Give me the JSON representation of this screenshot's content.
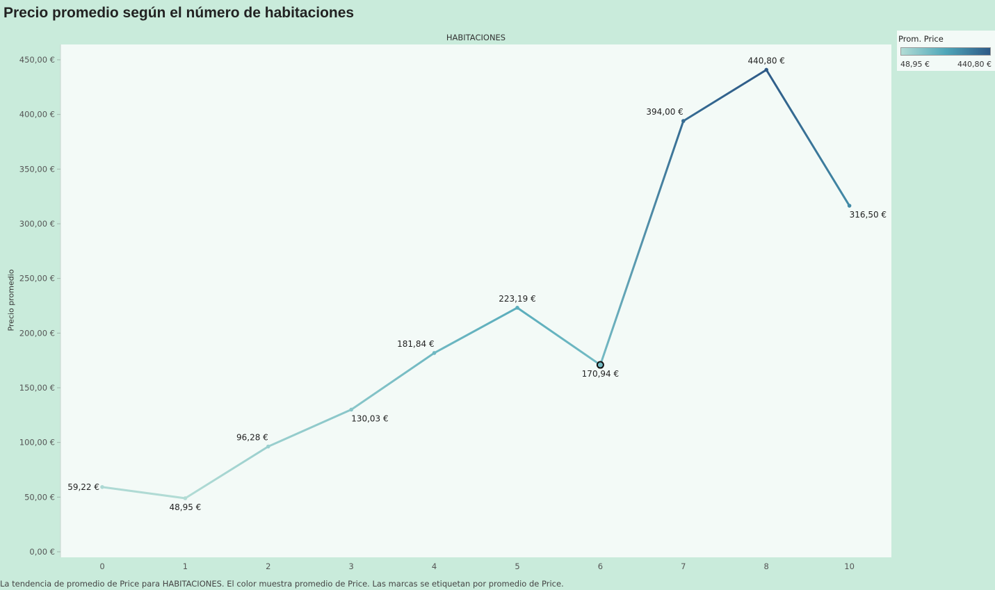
{
  "title": "Precio promedio según el número de habitaciones",
  "caption": "La tendencia de promedio de Price para HABITACIONES. El color muestra promedio de Price. Las marcas se etiquetan por promedio de Price.",
  "legend": {
    "title": "Prom. Price",
    "min_label": "48,95 €",
    "max_label": "440,80 €",
    "color_low": "#b2dcd5",
    "color_mid": "#4fa7b9",
    "color_high": "#2e5a87"
  },
  "colors": {
    "plot_background": "#f3faf7",
    "page_background": "#c9ebdb",
    "selected_stroke": "#111111"
  },
  "chart_data": {
    "type": "line",
    "title": "Precio promedio según el número de habitaciones",
    "column_header": "HABITACIONES",
    "ylabel": "Precio promedio",
    "ylim": [
      0,
      450
    ],
    "yticks": [
      0,
      50,
      100,
      150,
      200,
      250,
      300,
      350,
      400,
      450
    ],
    "ytick_labels": [
      "0,00 €",
      "50,00 €",
      "100,00 €",
      "150,00 €",
      "200,00 €",
      "250,00 €",
      "300,00 €",
      "350,00 €",
      "400,00 €",
      "450,00 €"
    ],
    "categories": [
      "0",
      "1",
      "2",
      "3",
      "4",
      "5",
      "6",
      "7",
      "8",
      "10"
    ],
    "values": [
      59.22,
      48.95,
      96.28,
      130.03,
      181.84,
      223.19,
      170.94,
      394.0,
      440.8,
      316.5
    ],
    "labels": [
      "59,22 €",
      "48,95 €",
      "96,28 €",
      "130,03 €",
      "181,84 €",
      "223,19 €",
      "170,94 €",
      "394,00 €",
      "440,80 €",
      "316,50 €"
    ],
    "label_positions": [
      "left",
      "below",
      "above-left",
      "below-right",
      "above-left",
      "above",
      "below",
      "above-left",
      "above",
      "below-right"
    ],
    "selected_category": "6",
    "grid": false
  }
}
